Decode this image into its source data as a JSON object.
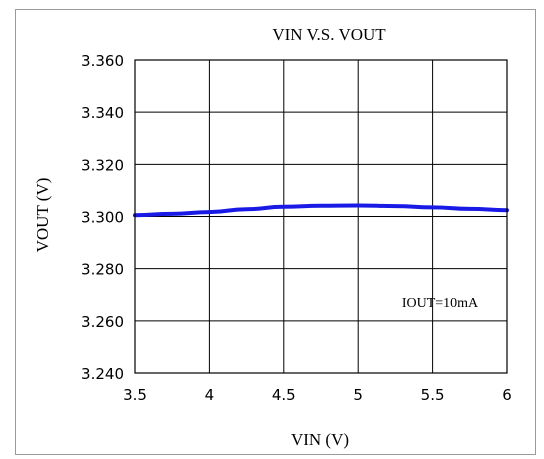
{
  "chart_data": {
    "type": "line",
    "title": "VIN V.S. VOUT",
    "xlabel": "VIN (V)",
    "ylabel": "VOUT (V)",
    "xlim": [
      3.5,
      6
    ],
    "ylim": [
      3.24,
      3.36
    ],
    "xticks": [
      "3.5",
      "4",
      "4.5",
      "5",
      "5.5",
      "6"
    ],
    "yticks": [
      "3.240",
      "3.260",
      "3.280",
      "3.300",
      "3.320",
      "3.340",
      "3.360"
    ],
    "grid": true,
    "annotation": "IOUT=10mA",
    "series": [
      {
        "color": "#1a1ae6",
        "x": [
          3.5,
          3.75,
          4.0,
          4.25,
          4.5,
          4.75,
          5.0,
          5.25,
          5.5,
          5.75,
          6.0
        ],
        "y": [
          3.3005,
          3.301,
          3.3017,
          3.3028,
          3.3037,
          3.3041,
          3.3042,
          3.304,
          3.3035,
          3.3029,
          3.3024
        ]
      }
    ]
  }
}
